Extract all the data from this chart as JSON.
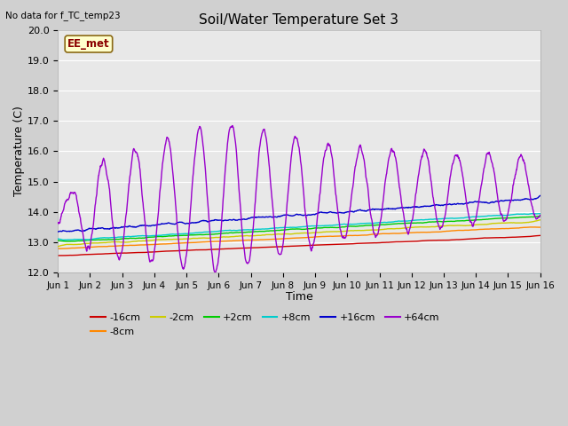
{
  "title": "Soil/Water Temperature Set 3",
  "subtitle": "No data for f_TC_temp23",
  "xlabel": "Time",
  "ylabel": "Temperature (C)",
  "ylim": [
    12.0,
    20.0
  ],
  "yticks": [
    12.0,
    13.0,
    14.0,
    15.0,
    16.0,
    17.0,
    18.0,
    19.0,
    20.0
  ],
  "fig_bg": "#d0d0d0",
  "plot_bg": "#e8e8e8",
  "legend_label": "EE_met",
  "series_colors": {
    "-16cm": "#cc0000",
    "-8cm": "#ff8800",
    "-2cm": "#cccc00",
    "+2cm": "#00cc00",
    "+8cm": "#00cccc",
    "+16cm": "#0000cc",
    "+64cm": "#9900cc"
  },
  "n_points": 1440,
  "days": 15
}
